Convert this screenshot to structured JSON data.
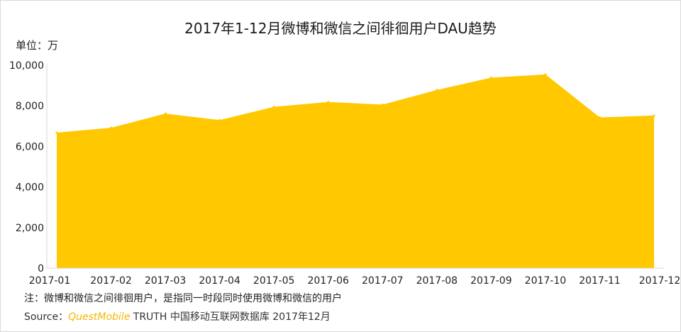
{
  "chart_data": {
    "type": "area",
    "title": "2017年1-12月微博和微信之间徘徊用户DAU趋势",
    "unit_label": "单位：万",
    "categories": [
      "2017-01",
      "2017-02",
      "2017-03",
      "2017-04",
      "2017-05",
      "2017-06",
      "2017-07",
      "2017-08",
      "2017-09",
      "2017-10",
      "2017-11",
      "2017-12"
    ],
    "values": [
      6680,
      6920,
      7620,
      7300,
      7950,
      8190,
      8060,
      8780,
      9390,
      9550,
      7430,
      7520
    ],
    "ylim": [
      0,
      10000
    ],
    "yticks": [
      0,
      2000,
      4000,
      6000,
      8000,
      10000
    ],
    "ytick_labels": [
      "0",
      "2,000",
      "4,000",
      "6,000",
      "8,000",
      "10,000"
    ],
    "grid": false,
    "color": "#ffc800"
  },
  "note": "注：微博和微信之间徘徊用户，是指同一时段同时使用微博和微信的用户",
  "source": {
    "prefix": "Source：",
    "brand": "QuestMobile",
    "suffix": " TRUTH 中国移动互联网数据库 2017年12月"
  }
}
